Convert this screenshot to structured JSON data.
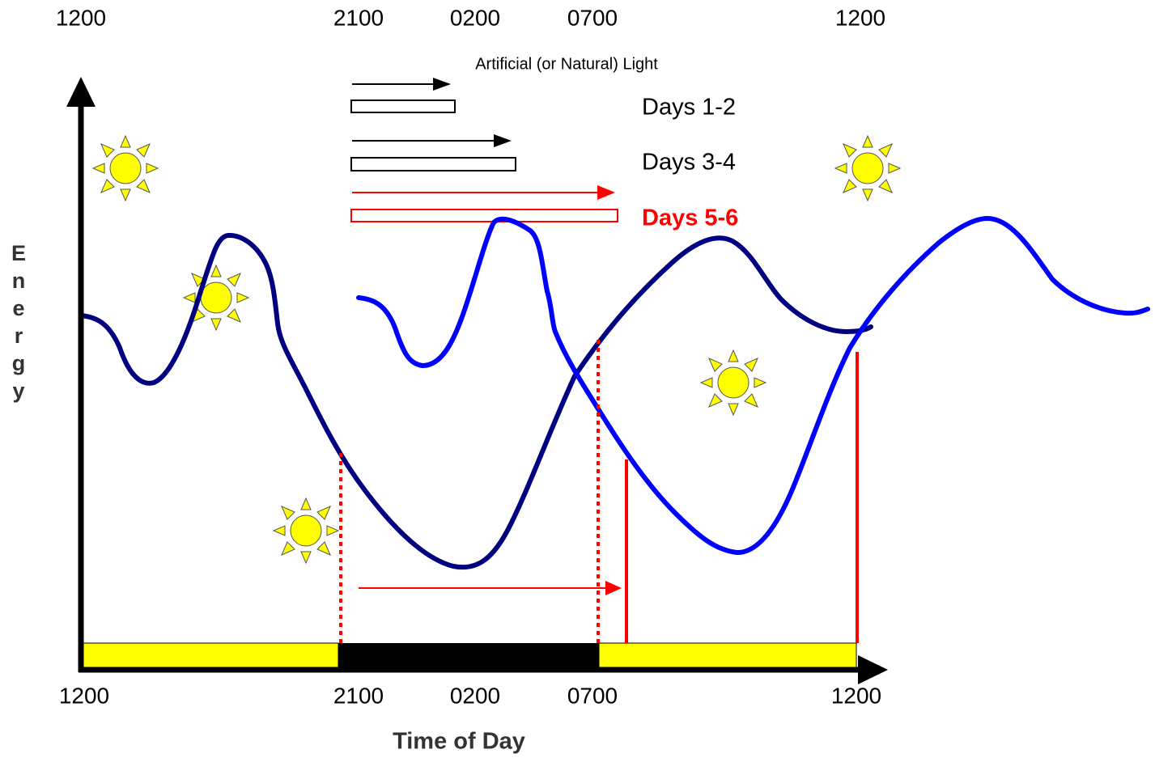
{
  "top_labels": [
    "1200",
    "2100",
    "0200",
    "0700",
    "1200"
  ],
  "bottom_labels": [
    "1200",
    "2100",
    "0200",
    "0700",
    "1200"
  ],
  "legend_title": "Artificial (or Natural) Light",
  "legend": [
    {
      "label": "Days 1-2"
    },
    {
      "label": "Days 3-4"
    },
    {
      "label": "Days 5-6"
    }
  ],
  "y_axis_label": "Energy",
  "x_axis_label": "Time of Day"
}
